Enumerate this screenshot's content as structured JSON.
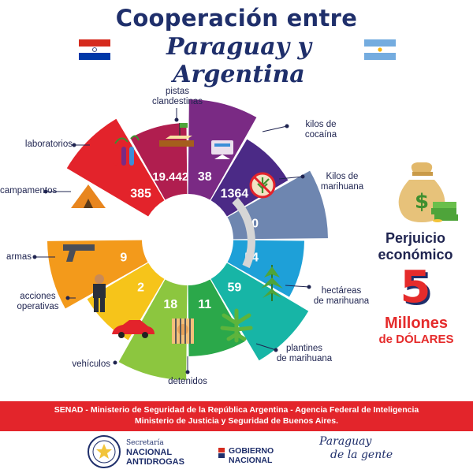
{
  "title": {
    "line1": "Cooperación entre",
    "line2": "Paraguay y Argentina"
  },
  "wheel": {
    "segments": [
      {
        "label": "kilos de cocaína",
        "value": "385",
        "color": "#e3232b",
        "icon": "cocaine-icon"
      },
      {
        "label": "Kilos de marihuana",
        "value": "19.442",
        "color": "#b01e4f",
        "icon": "no-marijuana-icon"
      },
      {
        "label": "hectáreas de marihuana",
        "value": "38",
        "color": "#7a2a84",
        "icon": "marijuana-plant-icon"
      },
      {
        "label": "plantines de marihuana",
        "value": "1364",
        "color": "#4b2a86",
        "icon": "marijuana-leaf-icon"
      },
      {
        "label": "detenidos",
        "value": "70",
        "color": "#6e86b0",
        "icon": "detainee-icon"
      },
      {
        "label": "vehículos",
        "value": "54",
        "color": "#1ea0d8",
        "icon": "car-icon"
      },
      {
        "label": "acciones operativas",
        "value": "59",
        "color": "#17b5a6",
        "icon": "officer-icon"
      },
      {
        "label": "armas",
        "value": "11",
        "color": "#2ba84a",
        "icon": "gun-icon"
      },
      {
        "label": "campamentos",
        "value": "18",
        "color": "#8cc63f",
        "icon": "tent-icon"
      },
      {
        "label": "laboratorios",
        "value": "2",
        "color": "#f6c41a",
        "icon": "lab-tubes-icon"
      },
      {
        "label": "pistas clandestinas",
        "value": "9",
        "color": "#f39a1b",
        "icon": "airstrip-icon"
      }
    ]
  },
  "labels": {
    "kilos_cocaina": [
      "kilos de",
      "cocaína"
    ],
    "kilos_marihuana": [
      "Kilos de",
      "marihuana"
    ],
    "hectareas": [
      "hectáreas",
      "de marihuana"
    ],
    "plantines": [
      "plantines",
      "de marihuana"
    ],
    "detenidos": [
      "detenidos"
    ],
    "vehiculos": [
      "vehículos"
    ],
    "acciones": [
      "acciones",
      "operativas"
    ],
    "armas": [
      "armas"
    ],
    "campamentos": [
      "campamentos"
    ],
    "laboratorios": [
      "laboratorios"
    ],
    "pistas": [
      "pistas",
      "clandestinas"
    ]
  },
  "perjuicio": {
    "line1": "Perjuicio",
    "line2": "económico",
    "amount": "5",
    "unit": "Millones",
    "currency": "de DÓLARES"
  },
  "banner": {
    "line1": "SENAD - Ministerio de Seguridad de la República Argentina - Agencia Federal de Inteligencia",
    "line2": "Ministerio de Justicia y Seguridad de Buenos Aires."
  },
  "footer": {
    "senad_small": "Secretaría",
    "senad_line1": "NACIONAL",
    "senad_line2": "ANTIDROGAS",
    "gob_line1": "GOBIERNO",
    "gob_line2": "NACIONAL",
    "pyg_line1": "Paraguay",
    "pyg_line2": "de la gente"
  },
  "colors": {
    "navy": "#1f2f6b",
    "red": "#e3252b",
    "py_red": "#d52b1e",
    "py_blue": "#0038a8",
    "ar_blue": "#74acdf"
  }
}
